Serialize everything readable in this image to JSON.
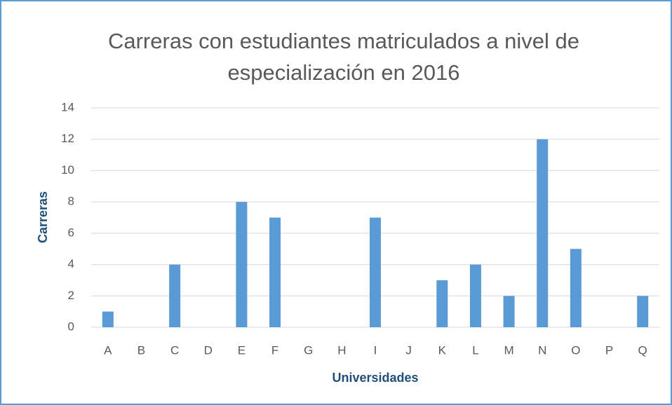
{
  "chart_data": {
    "type": "bar",
    "title": "Carreras con estudiantes matriculados a nivel de especialización en 2016",
    "x_label": "Universidades",
    "y_label": "Carreras",
    "categories": [
      "A",
      "B",
      "C",
      "D",
      "E",
      "F",
      "G",
      "H",
      "I",
      "J",
      "K",
      "L",
      "M",
      "N",
      "O",
      "P",
      "Q"
    ],
    "values": [
      1,
      0,
      4,
      0,
      8,
      7,
      0,
      0,
      7,
      0,
      3,
      4,
      2,
      12,
      5,
      0,
      2
    ],
    "color": "#5b9bd5",
    "ylim": [
      0,
      14
    ],
    "yticks": [
      0,
      2,
      4,
      6,
      8,
      10,
      12,
      14
    ],
    "grid": true
  }
}
